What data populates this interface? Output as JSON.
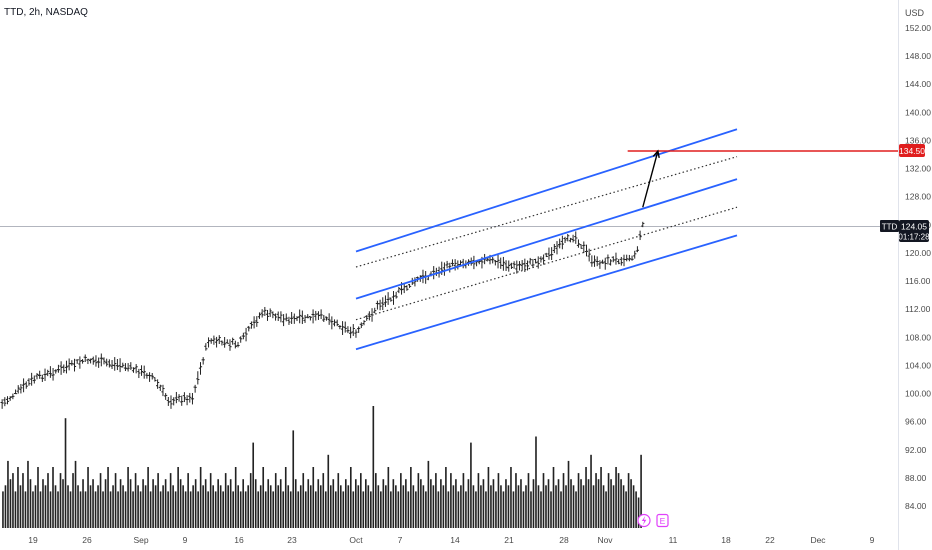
{
  "header": {
    "title": "TTD, 2h, NASDAQ"
  },
  "currency_label": "USD",
  "colors": {
    "bars": "#222222",
    "volume": "#222222",
    "channel": "#2962ff",
    "target_line": "#e01e1e",
    "projection_arrow": "#000000",
    "price_line": "#9e9e9e",
    "axis_text": "#4a4a4a"
  },
  "price_scale": {
    "labels": [
      "152.00",
      "148.00",
      "144.00",
      "140.00",
      "136.00",
      "132.00",
      "128.00",
      "124.00",
      "120.00",
      "116.00",
      "112.00",
      "108.00",
      "104.00",
      "100.00",
      "96.00",
      "92.00",
      "88.00",
      "84.00"
    ]
  },
  "time_scale": {
    "labels": [
      "19",
      "26",
      "Sep",
      "9",
      "16",
      "23",
      "Oct",
      "7",
      "14",
      "21",
      "28",
      "Nov",
      "11",
      "18",
      "22",
      "Dec",
      "9"
    ]
  },
  "last_price": {
    "symbol": "TTD",
    "value": "124.05",
    "countdown": "01:17:28"
  },
  "target": {
    "value": "134.50"
  },
  "event_icons": {
    "earnings": "E",
    "flash": "flash-icon"
  },
  "chart_data": {
    "type": "ohlc",
    "title": "TTD, 2h, NASDAQ",
    "ylabel": "USD",
    "ylim": [
      82,
      155
    ],
    "grid": false,
    "price_path": [
      {
        "date": "Aug 15",
        "close": 98.5
      },
      {
        "date": "Aug 19",
        "close": 102.0
      },
      {
        "date": "Aug 26",
        "close": 104.8
      },
      {
        "date": "Aug 30",
        "close": 104.0
      },
      {
        "date": "Sep 3",
        "close": 102.5
      },
      {
        "date": "Sep 6",
        "close": 99.0
      },
      {
        "date": "Sep 10",
        "close": 99.5
      },
      {
        "date": "Sep 12",
        "close": 107.5
      },
      {
        "date": "Sep 16",
        "close": 107.0
      },
      {
        "date": "Sep 19",
        "close": 111.5
      },
      {
        "date": "Sep 23",
        "close": 110.5
      },
      {
        "date": "Sep 27",
        "close": 111.0
      },
      {
        "date": "Oct 1",
        "close": 108.5
      },
      {
        "date": "Oct 4",
        "close": 112.5
      },
      {
        "date": "Oct 9",
        "close": 116.0
      },
      {
        "date": "Oct 14",
        "close": 118.5
      },
      {
        "date": "Oct 18",
        "close": 119.0
      },
      {
        "date": "Oct 22",
        "close": 118.0
      },
      {
        "date": "Oct 25",
        "close": 119.0
      },
      {
        "date": "Oct 29",
        "close": 122.5
      },
      {
        "date": "Oct 31",
        "close": 118.5
      },
      {
        "date": "Nov 5",
        "close": 119.5
      },
      {
        "date": "Nov 6",
        "close": 124.05
      }
    ],
    "volume": {
      "unit": "relative",
      "values": [
        0.3,
        0.35,
        0.55,
        0.4,
        0.45,
        0.3,
        0.5,
        0.35,
        0.45,
        0.3,
        0.55,
        0.4,
        0.3,
        0.35,
        0.5,
        0.3,
        0.4,
        0.35,
        0.45,
        0.3,
        0.5,
        0.35,
        0.3,
        0.45,
        0.4,
        0.9,
        0.35,
        0.3,
        0.45,
        0.55,
        0.35,
        0.3,
        0.4,
        0.3,
        0.5,
        0.35,
        0.4,
        0.3,
        0.35,
        0.45,
        0.3,
        0.4,
        0.5,
        0.3,
        0.35,
        0.45,
        0.3,
        0.4,
        0.35,
        0.3,
        0.5,
        0.4,
        0.3,
        0.45,
        0.35,
        0.3,
        0.4,
        0.35,
        0.5,
        0.3,
        0.4,
        0.35,
        0.45,
        0.3,
        0.35,
        0.4,
        0.3,
        0.45,
        0.35,
        0.3,
        0.5,
        0.4,
        0.35,
        0.3,
        0.45,
        0.3,
        0.35,
        0.4,
        0.3,
        0.5,
        0.35,
        0.4,
        0.3,
        0.45,
        0.35,
        0.3,
        0.4,
        0.35,
        0.3,
        0.45,
        0.35,
        0.4,
        0.3,
        0.5,
        0.35,
        0.3,
        0.4,
        0.3,
        0.35,
        0.45,
        0.7,
        0.4,
        0.3,
        0.35,
        0.5,
        0.3,
        0.4,
        0.35,
        0.3,
        0.45,
        0.35,
        0.4,
        0.3,
        0.5,
        0.35,
        0.3,
        0.8,
        0.4,
        0.3,
        0.35,
        0.45,
        0.3,
        0.4,
        0.35,
        0.5,
        0.3,
        0.4,
        0.35,
        0.45,
        0.3,
        0.6,
        0.35,
        0.4,
        0.3,
        0.45,
        0.35,
        0.3,
        0.4,
        0.35,
        0.5,
        0.3,
        0.4,
        0.35,
        0.45,
        0.3,
        0.4,
        0.35,
        0.3,
        1.0,
        0.45,
        0.35,
        0.3,
        0.4,
        0.35,
        0.5,
        0.3,
        0.4,
        0.35,
        0.3,
        0.45,
        0.35,
        0.4,
        0.3,
        0.5,
        0.35,
        0.3,
        0.45,
        0.4,
        0.35,
        0.3,
        0.55,
        0.4,
        0.35,
        0.45,
        0.3,
        0.4,
        0.35,
        0.5,
        0.3,
        0.45,
        0.35,
        0.4,
        0.3,
        0.35,
        0.45,
        0.3,
        0.4,
        0.7,
        0.35,
        0.3,
        0.45,
        0.35,
        0.4,
        0.3,
        0.5,
        0.35,
        0.4,
        0.3,
        0.45,
        0.35,
        0.3,
        0.4,
        0.35,
        0.5,
        0.3,
        0.45,
        0.35,
        0.4,
        0.3,
        0.35,
        0.45,
        0.3,
        0.4,
        0.75,
        0.35,
        0.3,
        0.45,
        0.35,
        0.4,
        0.3,
        0.5,
        0.35,
        0.4,
        0.3,
        0.45,
        0.35,
        0.55,
        0.4,
        0.35,
        0.3,
        0.45,
        0.4,
        0.35,
        0.5,
        0.4,
        0.6,
        0.35,
        0.45,
        0.4,
        0.5,
        0.35,
        0.3,
        0.45,
        0.4,
        0.35,
        0.5,
        0.45,
        0.4,
        0.35,
        0.3,
        0.45,
        0.4,
        0.35,
        0.3,
        0.25,
        0.6
      ]
    },
    "channel": {
      "color": "#2962ff",
      "lines": [
        {
          "role": "upper-outer",
          "start": {
            "date": "Oct 1",
            "price": 120.2
          },
          "end": {
            "date": "Nov 18",
            "price": 137.6
          }
        },
        {
          "role": "upper-median",
          "start": {
            "date": "Oct 1",
            "price": 118.0
          },
          "end": {
            "date": "Nov 18",
            "price": 133.7
          },
          "style": "dotted"
        },
        {
          "role": "upper-inner",
          "start": {
            "date": "Oct 1",
            "price": 113.5
          },
          "end": {
            "date": "Nov 18",
            "price": 130.5
          }
        },
        {
          "role": "lower-median",
          "start": {
            "date": "Oct 1",
            "price": 110.5
          },
          "end": {
            "date": "Nov 18",
            "price": 126.5
          },
          "style": "dotted"
        },
        {
          "role": "lower-outer",
          "start": {
            "date": "Oct 1",
            "price": 106.3
          },
          "end": {
            "date": "Nov 18",
            "price": 122.5
          }
        }
      ]
    },
    "target_line": {
      "price": 134.5,
      "from": "Nov 4",
      "label": "134.50"
    },
    "projection_arrow": {
      "from": {
        "date": "Nov 6",
        "price": 126.5
      },
      "to": {
        "date": "Nov 8",
        "price": 134.5
      }
    },
    "last_price": 124.05
  }
}
